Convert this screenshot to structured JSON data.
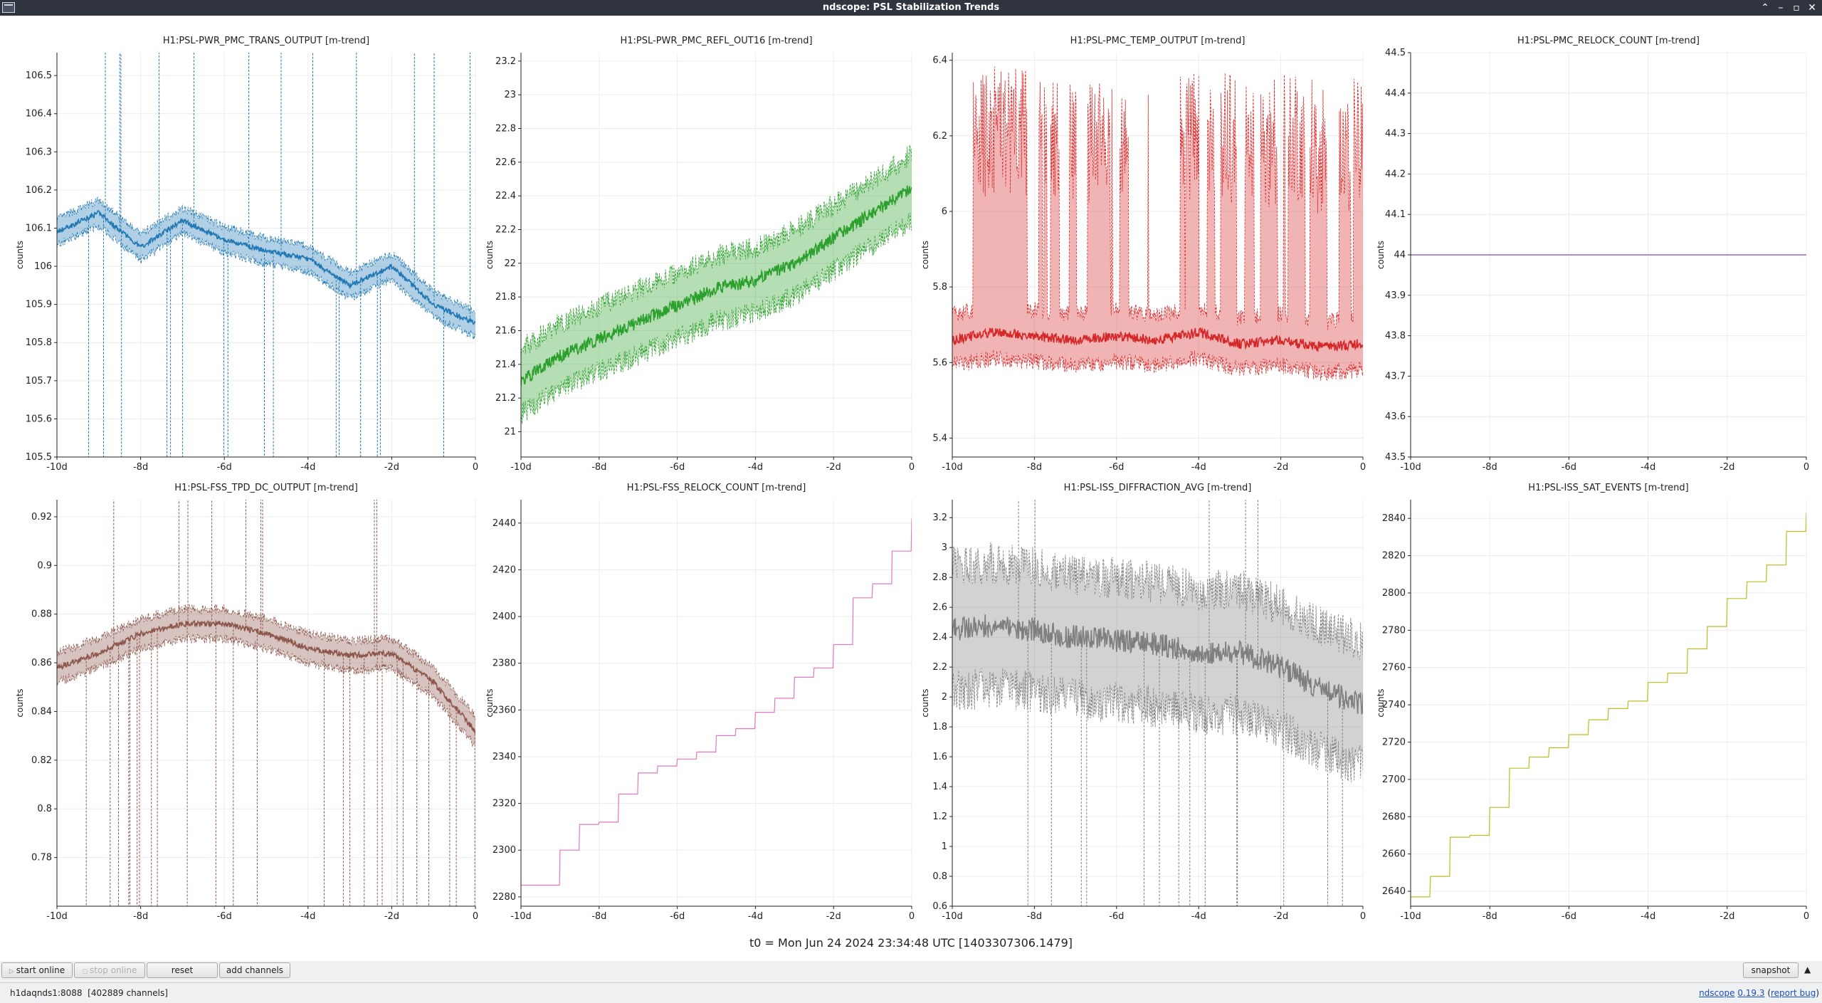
{
  "window": {
    "title": "ndscope: PSL Stabilization Trends"
  },
  "plots": [
    {
      "title": "H1:PSL-PWR_PMC_TRANS_OUTPUT [m-trend]",
      "ylabel": "counts",
      "color": "#1f77b4",
      "yticks": [
        "105.5",
        "105.6",
        "105.7",
        "105.8",
        "105.9",
        "106",
        "106.1",
        "106.2",
        "106.3",
        "106.4",
        "106.5"
      ],
      "xticks": [
        "-10d",
        "-8d",
        "-6d",
        "-4d",
        "-2d",
        "0"
      ],
      "ylim": [
        105.5,
        106.56
      ]
    },
    {
      "title": "H1:PSL-PWR_PMC_REFL_OUT16 [m-trend]",
      "ylabel": "counts",
      "color": "#2ca02c",
      "yticks": [
        "21",
        "21.2",
        "21.4",
        "21.6",
        "21.8",
        "22",
        "22.2",
        "22.4",
        "22.6",
        "22.8",
        "23",
        "23.2"
      ],
      "xticks": [
        "-10d",
        "-8d",
        "-6d",
        "-4d",
        "-2d",
        "0"
      ],
      "ylim": [
        20.85,
        23.25
      ]
    },
    {
      "title": "H1:PSL-PMC_TEMP_OUTPUT [m-trend]",
      "ylabel": "counts",
      "color": "#d62728",
      "yticks": [
        "5.4",
        "5.6",
        "5.8",
        "6",
        "6.2",
        "6.4"
      ],
      "xticks": [
        "-10d",
        "-8d",
        "-6d",
        "-4d",
        "-2d",
        "0"
      ],
      "ylim": [
        5.35,
        6.42
      ]
    },
    {
      "title": "H1:PSL-PMC_RELOCK_COUNT [m-trend]",
      "ylabel": "counts",
      "color": "#9467bd",
      "yticks": [
        "43.5",
        "43.6",
        "43.7",
        "43.8",
        "43.9",
        "44",
        "44.1",
        "44.2",
        "44.3",
        "44.4",
        "44.5"
      ],
      "xticks": [
        "-10d",
        "-8d",
        "-6d",
        "-4d",
        "-2d",
        "0"
      ],
      "ylim": [
        43.5,
        44.5
      ]
    },
    {
      "title": "H1:PSL-FSS_TPD_DC_OUTPUT [m-trend]",
      "ylabel": "counts",
      "color": "#8c564b",
      "yticks": [
        "0.78",
        "0.8",
        "0.82",
        "0.84",
        "0.86",
        "0.88",
        "0.9",
        "0.92"
      ],
      "xticks": [
        "-10d",
        "-8d",
        "-6d",
        "-4d",
        "-2d",
        "0"
      ],
      "ylim": [
        0.76,
        0.927
      ]
    },
    {
      "title": "H1:PSL-FSS_RELOCK_COUNT [m-trend]",
      "ylabel": "counts",
      "color": "#e377c2",
      "yticks": [
        "2280",
        "2300",
        "2320",
        "2340",
        "2360",
        "2380",
        "2400",
        "2420",
        "2440"
      ],
      "xticks": [
        "-10d",
        "-8d",
        "-6d",
        "-4d",
        "-2d",
        "0"
      ],
      "ylim": [
        2276,
        2450
      ]
    },
    {
      "title": "H1:PSL-ISS_DIFFRACTION_AVG [m-trend]",
      "ylabel": "counts",
      "color": "#7f7f7f",
      "yticks": [
        "0.6",
        "0.8",
        "1",
        "1.2",
        "1.4",
        "1.6",
        "1.8",
        "2",
        "2.2",
        "2.4",
        "2.6",
        "2.8",
        "3",
        "3.2"
      ],
      "xticks": [
        "-10d",
        "-8d",
        "-6d",
        "-4d",
        "-2d",
        "0"
      ],
      "ylim": [
        0.6,
        3.32
      ]
    },
    {
      "title": "H1:PSL-ISS_SAT_EVENTS [m-trend]",
      "ylabel": "counts",
      "color": "#bcbd22",
      "yticks": [
        "2640",
        "2660",
        "2680",
        "2700",
        "2720",
        "2740",
        "2760",
        "2780",
        "2800",
        "2820",
        "2840"
      ],
      "xticks": [
        "-10d",
        "-8d",
        "-6d",
        "-4d",
        "-2d",
        "0"
      ],
      "ylim": [
        2632,
        2850
      ]
    }
  ],
  "chart_data": [
    {
      "type": "line",
      "title": "H1:PSL-PWR_PMC_TRANS_OUTPUT [m-trend]",
      "xlabel": "",
      "ylabel": "counts",
      "x_unit": "days",
      "xlim": [
        -10,
        0
      ],
      "ylim": [
        105.5,
        106.56
      ],
      "x": [
        -10,
        -9,
        -8,
        -7,
        -6,
        -5,
        -4,
        -3,
        -2,
        -1,
        0
      ],
      "series": [
        {
          "values": [
            106.09,
            106.14,
            106.05,
            106.12,
            106.07,
            106.04,
            106.02,
            105.95,
            106.0,
            105.9,
            105.85
          ]
        }
      ]
    },
    {
      "type": "line",
      "title": "H1:PSL-PWR_PMC_REFL_OUT16 [m-trend]",
      "xlabel": "",
      "ylabel": "counts",
      "x_unit": "days",
      "xlim": [
        -10,
        0
      ],
      "ylim": [
        20.85,
        23.25
      ],
      "x": [
        -10,
        -9,
        -8,
        -7,
        -6,
        -5,
        -4,
        -3,
        -2,
        -1,
        0
      ],
      "series": [
        {
          "values": [
            21.3,
            21.45,
            21.55,
            21.65,
            21.75,
            21.85,
            21.9,
            22.0,
            22.15,
            22.3,
            22.45
          ]
        }
      ]
    },
    {
      "type": "line",
      "title": "H1:PSL-PMC_TEMP_OUTPUT [m-trend]",
      "xlabel": "",
      "ylabel": "counts",
      "x_unit": "days",
      "xlim": [
        -10,
        0
      ],
      "ylim": [
        5.35,
        6.42
      ],
      "x": [
        -10,
        -9,
        -8,
        -7,
        -6,
        -5,
        -4,
        -3,
        -2,
        -1,
        0
      ],
      "series": [
        {
          "values": [
            5.66,
            5.68,
            5.67,
            5.66,
            5.67,
            5.66,
            5.68,
            5.65,
            5.66,
            5.64,
            5.65
          ]
        }
      ]
    },
    {
      "type": "line",
      "title": "H1:PSL-PMC_RELOCK_COUNT [m-trend]",
      "xlabel": "",
      "ylabel": "counts",
      "x_unit": "days",
      "xlim": [
        -10,
        0
      ],
      "ylim": [
        43.5,
        44.5
      ],
      "x": [
        -10,
        -9,
        -8,
        -7,
        -6,
        -5,
        -4,
        -3,
        -2,
        -1,
        0
      ],
      "series": [
        {
          "values": [
            44,
            44,
            44,
            44,
            44,
            44,
            44,
            44,
            44,
            44,
            44
          ]
        }
      ]
    },
    {
      "type": "line",
      "title": "H1:PSL-FSS_TPD_DC_OUTPUT [m-trend]",
      "xlabel": "",
      "ylabel": "counts",
      "x_unit": "days",
      "xlim": [
        -10,
        0
      ],
      "ylim": [
        0.76,
        0.927
      ],
      "x": [
        -10,
        -9,
        -8,
        -7,
        -6,
        -5,
        -4,
        -3,
        -2,
        -1,
        0
      ],
      "series": [
        {
          "values": [
            0.858,
            0.864,
            0.872,
            0.876,
            0.876,
            0.872,
            0.866,
            0.863,
            0.864,
            0.852,
            0.832
          ]
        }
      ]
    },
    {
      "type": "line",
      "title": "H1:PSL-FSS_RELOCK_COUNT [m-trend]",
      "xlabel": "",
      "ylabel": "counts",
      "x_unit": "days",
      "xlim": [
        -10,
        0
      ],
      "ylim": [
        2276,
        2450
      ],
      "x": [
        -10,
        -9.5,
        -9,
        -8.5,
        -8,
        -7.5,
        -7,
        -6.5,
        -6,
        -5.5,
        -5,
        -4.5,
        -4,
        -3.5,
        -3,
        -2.5,
        -2,
        -1.5,
        -1,
        -0.5,
        0
      ],
      "series": [
        {
          "values": [
            2285,
            2285,
            2300,
            2311,
            2312,
            2324,
            2333,
            2336,
            2339,
            2342,
            2349,
            2352,
            2359,
            2365,
            2374,
            2378,
            2388,
            2408,
            2414,
            2428,
            2442
          ]
        }
      ]
    },
    {
      "type": "line",
      "title": "H1:PSL-ISS_DIFFRACTION_AVG [m-trend]",
      "xlabel": "",
      "ylabel": "counts",
      "x_unit": "days",
      "xlim": [
        -10,
        0
      ],
      "ylim": [
        0.6,
        3.32
      ],
      "x": [
        -10,
        -9,
        -8,
        -7,
        -6,
        -5,
        -4,
        -3,
        -2,
        -1,
        0
      ],
      "series": [
        {
          "values": [
            2.45,
            2.48,
            2.45,
            2.4,
            2.38,
            2.35,
            2.3,
            2.3,
            2.2,
            2.05,
            1.95
          ]
        }
      ]
    },
    {
      "type": "line",
      "title": "H1:PSL-ISS_SAT_EVENTS [m-trend]",
      "xlabel": "",
      "ylabel": "counts",
      "x_unit": "days",
      "xlim": [
        -10,
        0
      ],
      "ylim": [
        2632,
        2850
      ],
      "x": [
        -10,
        -9.5,
        -9,
        -8.5,
        -8,
        -7.5,
        -7,
        -6.5,
        -6,
        -5.5,
        -5,
        -4.5,
        -4,
        -3.5,
        -3,
        -2.5,
        -2,
        -1.5,
        -1,
        -0.5,
        0
      ],
      "series": [
        {
          "values": [
            2637,
            2648,
            2669,
            2670,
            2685,
            2706,
            2712,
            2717,
            2724,
            2732,
            2738,
            2742,
            2752,
            2757,
            2770,
            2782,
            2797,
            2806,
            2815,
            2833,
            2843
          ]
        }
      ]
    }
  ],
  "t0_label": "t0 = Mon Jun 24 2024 23:34:48 UTC [1403307306.1479]",
  "buttons": {
    "start_online": "start online",
    "stop_online": "stop online",
    "reset": "reset",
    "add_channels": "add channels",
    "snapshot": "snapshot"
  },
  "status": {
    "server": "h1daqnds1:8088",
    "channels": "[402889 channels]",
    "app_link": "ndscope",
    "version": "0.19.3",
    "report_prefix": "(",
    "report": "report bug",
    "report_suffix": ")"
  }
}
